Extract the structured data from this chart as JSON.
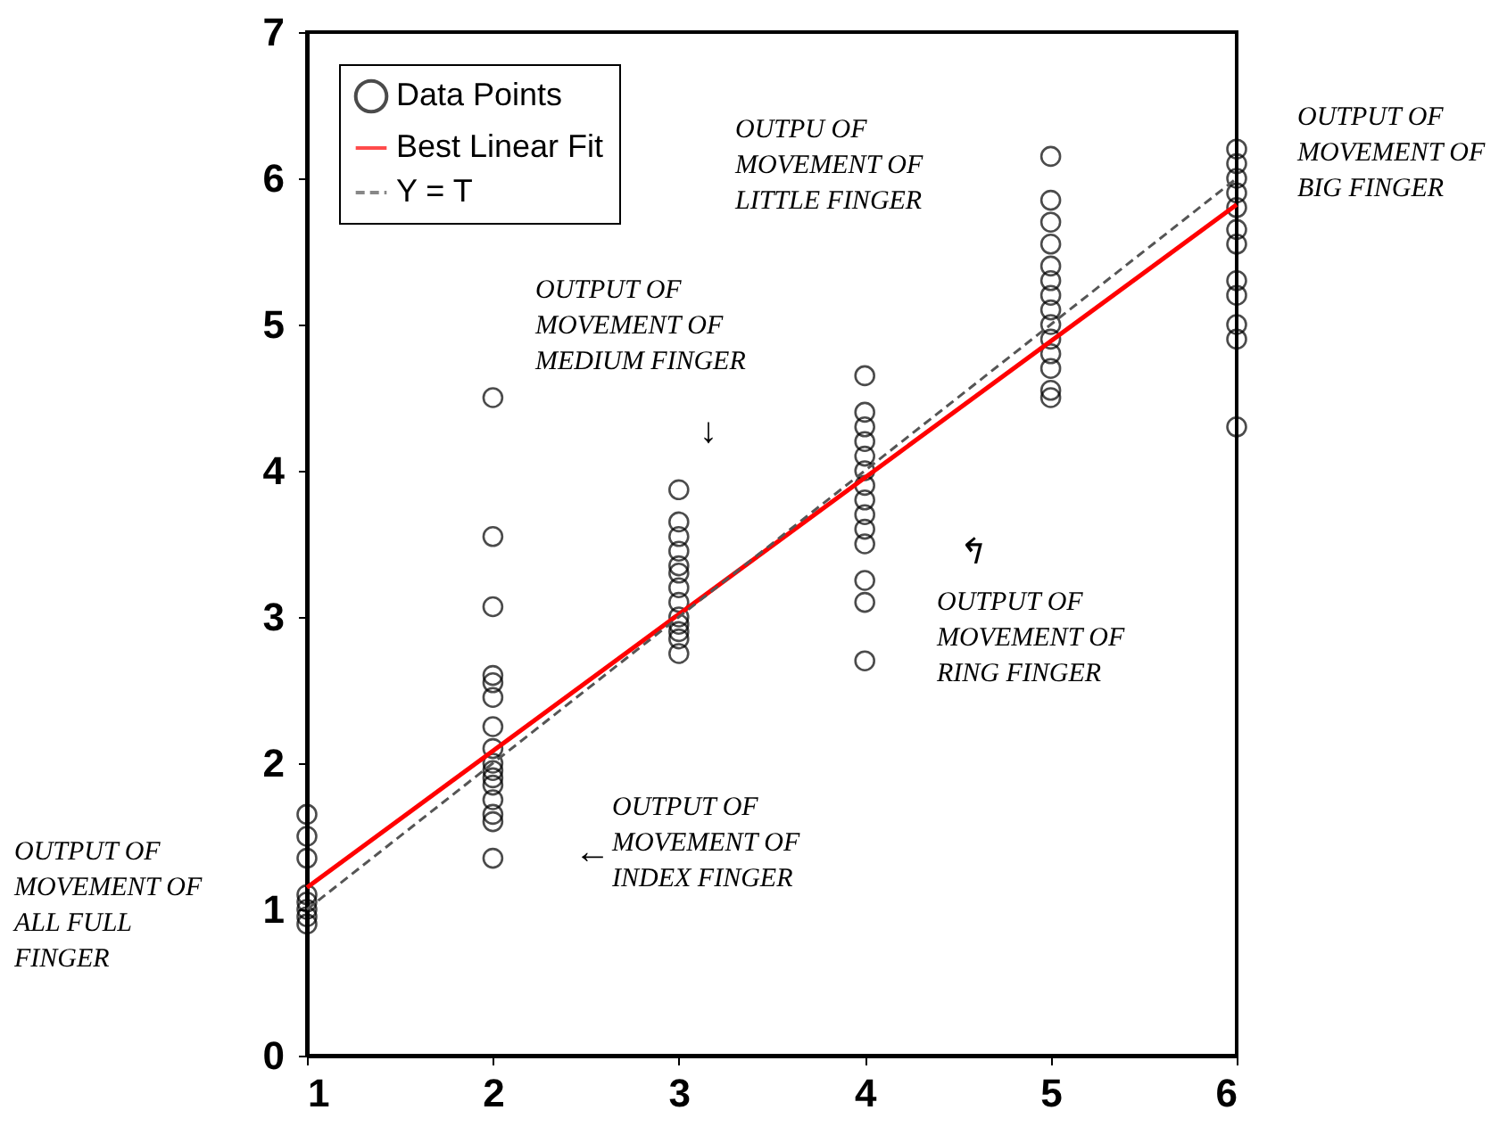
{
  "chart_data": {
    "type": "scatter",
    "xlim": [
      1,
      6
    ],
    "ylim": [
      0,
      7
    ],
    "xticks": [
      1,
      2,
      3,
      4,
      5,
      6
    ],
    "yticks": [
      0,
      1,
      2,
      3,
      4,
      5,
      6,
      7
    ],
    "grid": false,
    "legend": "top left",
    "series": [
      {
        "name": "Data Points",
        "color": "#000000",
        "marker": "circle",
        "x": [
          1,
          1,
          1,
          1,
          1,
          1,
          1,
          1,
          2,
          2,
          2,
          2,
          2,
          2,
          2,
          2,
          2,
          2,
          2,
          2,
          2,
          2,
          2,
          2,
          3,
          3,
          3,
          3,
          3,
          3,
          3,
          3,
          3,
          3,
          3,
          3,
          3,
          4,
          4,
          4,
          4,
          4,
          4,
          4,
          4,
          4,
          4,
          4,
          4,
          4,
          4,
          5,
          5,
          5,
          5,
          5,
          5,
          5,
          5,
          5,
          5,
          5,
          5,
          5,
          5,
          6,
          6,
          6,
          6,
          6,
          6,
          6,
          6,
          6,
          6,
          6,
          6
        ],
        "values": [
          1.65,
          1.5,
          1.35,
          1.1,
          1.05,
          1.0,
          0.95,
          0.9,
          4.5,
          3.55,
          3.07,
          2.6,
          2.55,
          2.45,
          2.25,
          2.1,
          2.0,
          1.95,
          1.9,
          1.85,
          1.75,
          1.65,
          1.6,
          1.35,
          3.87,
          3.65,
          3.55,
          3.45,
          3.35,
          3.3,
          3.2,
          3.1,
          3.0,
          2.95,
          2.9,
          2.85,
          2.75,
          4.65,
          4.4,
          4.3,
          4.2,
          4.1,
          4.0,
          3.9,
          3.8,
          3.7,
          3.6,
          3.5,
          3.25,
          3.1,
          2.7,
          6.15,
          5.85,
          5.7,
          5.55,
          5.4,
          5.3,
          5.2,
          5.1,
          5.0,
          4.9,
          4.8,
          4.7,
          4.55,
          4.5,
          6.2,
          6.1,
          6.0,
          5.9,
          5.8,
          5.65,
          5.55,
          5.3,
          5.2,
          5.0,
          4.9,
          4.3
        ]
      },
      {
        "name": "Best Linear Fit",
        "type": "line",
        "color": "#ff0000",
        "line_style": "solid",
        "x": [
          1,
          6
        ],
        "values": [
          1.15,
          5.82
        ]
      },
      {
        "name": "Y = T",
        "type": "line",
        "color": "#555555",
        "line_style": "dashed",
        "x": [
          1,
          6
        ],
        "values": [
          1,
          6
        ]
      }
    ],
    "annotations": [
      "OUTPUT OF\nMOVEMENT OF\nALL FULL\n FINGER",
      "OUTPUT OF\nMOVEMENT OF\nINDEX FINGER",
      "OUTPUT OF\nMOVEMENT OF\nMEDIUM FINGER",
      "OUTPU OF\nMOVEMENT OF\nLITTLE FINGER",
      "OUTPUT OF\nMOVEMENT OF\nRING FINGER",
      "OUTPUT OF\nMOVEMENT OF\nBIG FINGER",
      "↓",
      "←",
      "↰"
    ]
  }
}
